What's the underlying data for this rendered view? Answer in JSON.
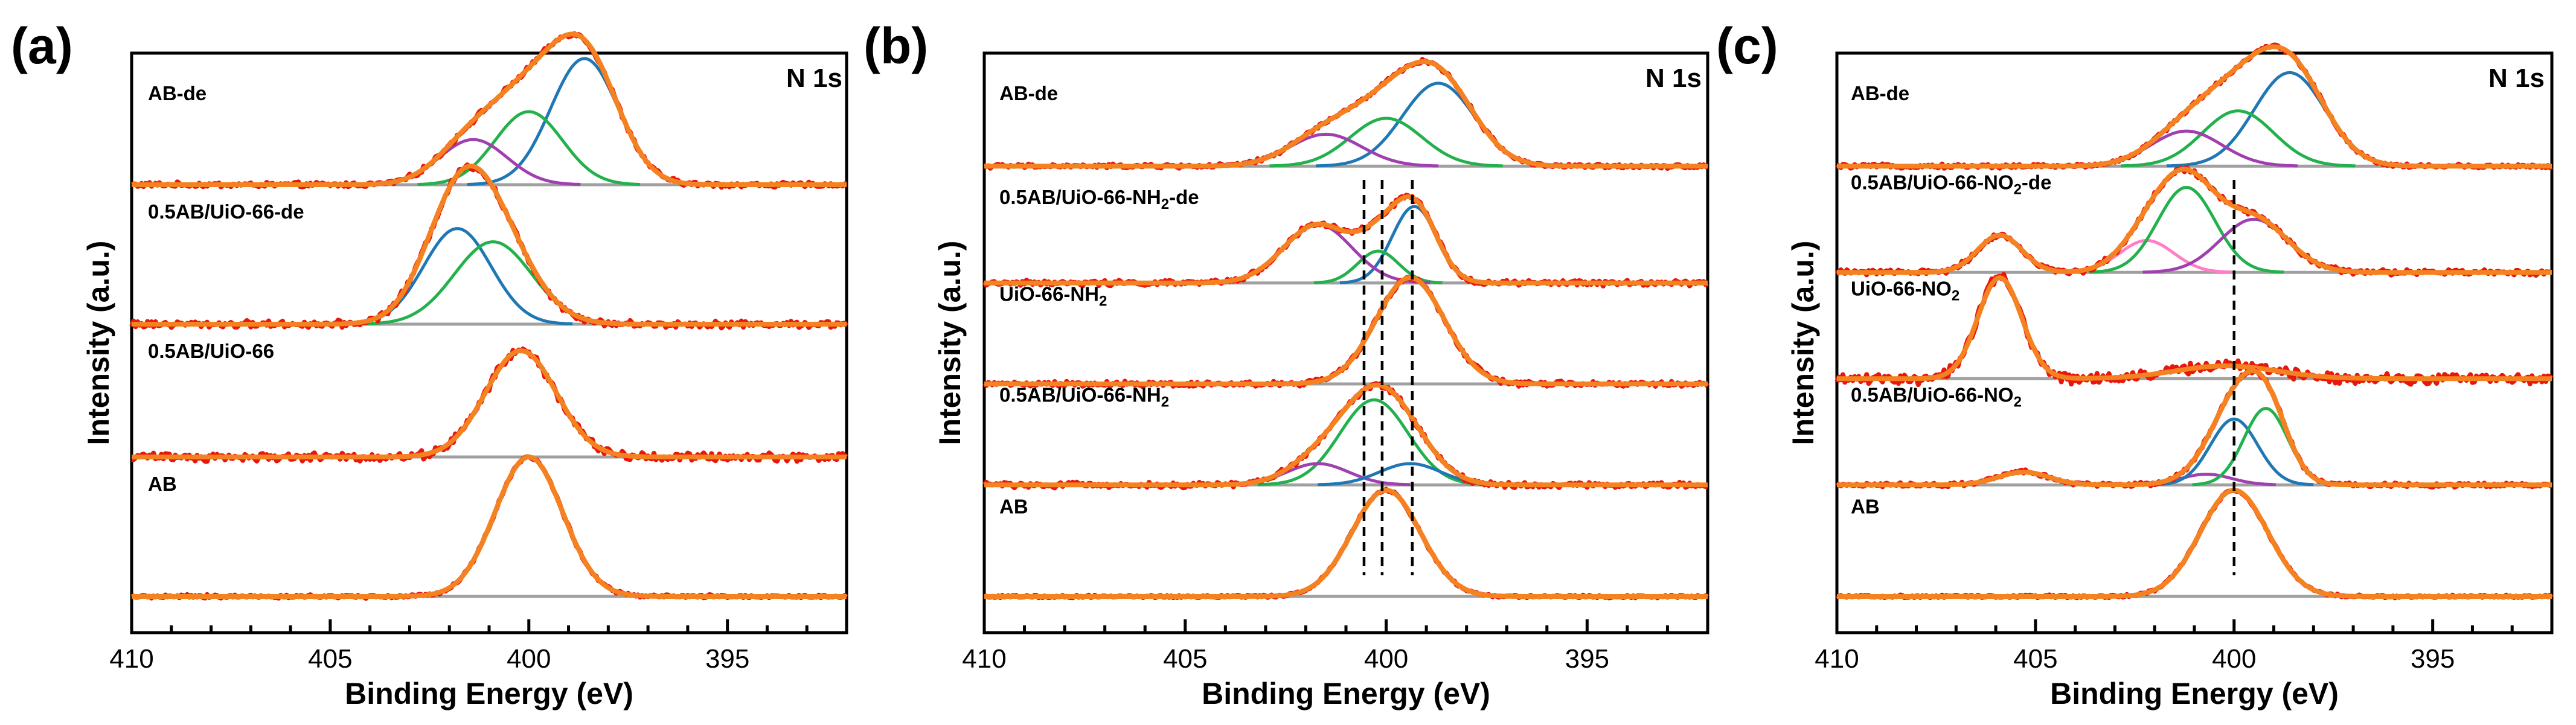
{
  "chart_data": [
    {
      "panel": "(a)",
      "type": "line",
      "title": "N 1s",
      "xlabel": "Binding Energy (eV)",
      "ylabel": "Intensity (a.u.)",
      "xlim": [
        410,
        392
      ],
      "x_reversed": true,
      "xticks": [
        410,
        405,
        400,
        395
      ],
      "yticks": [],
      "series_type": "XPS spectra, stacked (offset) vertically, raw data + envelope fit + component peaks",
      "spectra": [
        {
          "label": "AB-de",
          "label_parts": [
            {
              "text": "AB-de"
            }
          ],
          "offset": 3.1,
          "baseline": 0.0,
          "noise": 0.015,
          "components": [
            {
              "color": "#1f77b4",
              "center": 398.6,
              "height": 0.95,
              "fwhm": 2.0
            },
            {
              "color": "#22b14c",
              "center": 400.0,
              "height": 0.55,
              "fwhm": 2.0
            },
            {
              "color": "#a040b0",
              "center": 401.4,
              "height": 0.34,
              "fwhm": 2.0
            }
          ]
        },
        {
          "label": "0.5AB/UiO-66-de",
          "label_parts": [
            {
              "text": "0.5AB/UiO-66-de"
            }
          ],
          "offset": 2.05,
          "baseline": 0.0,
          "noise": 0.02,
          "components": [
            {
              "color": "#1f77b4",
              "center": 401.8,
              "height": 0.72,
              "fwhm": 2.0
            },
            {
              "color": "#22b14c",
              "center": 400.9,
              "height": 0.62,
              "fwhm": 2.3
            }
          ]
        },
        {
          "label": "0.5AB/UiO-66",
          "label_parts": [
            {
              "text": "0.5AB/UiO-66"
            }
          ],
          "offset": 1.05,
          "baseline": 0.0,
          "noise": 0.025,
          "components": [
            {
              "center": 400.2,
              "height": 0.8,
              "fwhm": 2.1,
              "color": "none"
            }
          ]
        },
        {
          "label": "AB",
          "label_parts": [
            {
              "text": "AB"
            }
          ],
          "offset": 0.0,
          "baseline": 0.0,
          "noise": 0.01,
          "components": [
            {
              "center": 400.0,
              "height": 1.05,
              "fwhm": 2.0,
              "color": "none"
            }
          ]
        }
      ],
      "reference_lines": []
    },
    {
      "panel": "(b)",
      "type": "line",
      "title": "N 1s",
      "xlabel": "Binding Energy (eV)",
      "ylabel": "Intensity (a.u.)",
      "xlim": [
        410,
        392
      ],
      "x_reversed": true,
      "xticks": [
        410,
        405,
        400,
        395
      ],
      "yticks": [],
      "series_type": "XPS spectra, stacked (offset) vertically, raw data + envelope fit + component peaks",
      "spectra": [
        {
          "label": "AB-de",
          "label_parts": [
            {
              "text": "AB-de"
            }
          ],
          "offset": 4.05,
          "baseline": 0.0,
          "noise": 0.015,
          "components": [
            {
              "color": "#1f77b4",
              "center": 398.7,
              "height": 0.78,
              "fwhm": 2.1
            },
            {
              "color": "#22b14c",
              "center": 400.0,
              "height": 0.45,
              "fwhm": 2.1
            },
            {
              "color": "#a040b0",
              "center": 401.5,
              "height": 0.3,
              "fwhm": 2.1
            }
          ]
        },
        {
          "label": "0.5AB/UiO-66-NH2-de",
          "label_parts": [
            {
              "text": "0.5AB/UiO-66-NH"
            },
            {
              "text": "2",
              "sub": true
            },
            {
              "text": "-de"
            }
          ],
          "offset": 2.95,
          "baseline": 0.0,
          "noise": 0.02,
          "components": [
            {
              "color": "#1f77b4",
              "center": 399.3,
              "height": 0.72,
              "fwhm": 1.3
            },
            {
              "color": "#22b14c",
              "center": 400.2,
              "height": 0.3,
              "fwhm": 1.2
            },
            {
              "color": "#a040b0",
              "center": 401.7,
              "height": 0.55,
              "fwhm": 2.0
            }
          ]
        },
        {
          "label": "UiO-66-NH2",
          "label_parts": [
            {
              "text": "UiO-66-NH"
            },
            {
              "text": "2",
              "sub": true
            }
          ],
          "offset": 2.0,
          "baseline": 0.0,
          "noise": 0.02,
          "components": [
            {
              "center": 399.4,
              "height": 1.0,
              "fwhm": 2.0,
              "color": "none"
            }
          ]
        },
        {
          "label": "0.5AB/UiO-66-NH2",
          "label_parts": [
            {
              "text": "0.5AB/UiO-66-NH"
            },
            {
              "text": "2",
              "sub": true
            }
          ],
          "offset": 1.05,
          "baseline": 0.0,
          "noise": 0.02,
          "components": [
            {
              "color": "#22b14c",
              "center": 400.3,
              "height": 0.8,
              "fwhm": 2.0
            },
            {
              "color": "#a040b0",
              "center": 401.7,
              "height": 0.2,
              "fwhm": 1.8
            },
            {
              "color": "#1f77b4",
              "center": 399.4,
              "height": 0.2,
              "fwhm": 1.8
            }
          ]
        },
        {
          "label": "AB",
          "label_parts": [
            {
              "text": "AB"
            }
          ],
          "offset": 0.0,
          "baseline": 0.0,
          "noise": 0.01,
          "components": [
            {
              "center": 400.0,
              "height": 1.0,
              "fwhm": 2.0,
              "color": "none"
            }
          ]
        }
      ],
      "reference_lines": [
        399.35,
        400.1,
        400.55
      ]
    },
    {
      "panel": "(c)",
      "type": "line",
      "title": "N 1s",
      "xlabel": "Binding Energy (eV)",
      "ylabel": "Intensity (a.u.)",
      "xlim": [
        410,
        392
      ],
      "x_reversed": true,
      "xticks": [
        410,
        405,
        400,
        395
      ],
      "yticks": [],
      "series_type": "XPS spectra, stacked (offset) vertically, raw data + envelope fit + component peaks",
      "spectra": [
        {
          "label": "AB-de",
          "label_parts": [
            {
              "text": "AB-de"
            }
          ],
          "offset": 4.05,
          "baseline": 0.0,
          "noise": 0.015,
          "components": [
            {
              "color": "#1f77b4",
              "center": 398.6,
              "height": 0.88,
              "fwhm": 2.1
            },
            {
              "color": "#22b14c",
              "center": 399.9,
              "height": 0.52,
              "fwhm": 2.1
            },
            {
              "color": "#a040b0",
              "center": 401.2,
              "height": 0.33,
              "fwhm": 2.1
            }
          ]
        },
        {
          "label": "0.5AB/UiO-66-NO2-de",
          "label_parts": [
            {
              "text": "0.5AB/UiO-66-NO"
            },
            {
              "text": "2",
              "sub": true
            },
            {
              "text": "-de"
            }
          ],
          "offset": 3.05,
          "baseline": 0.0,
          "noise": 0.02,
          "components": [
            {
              "color": "#7a7a7a",
              "center": 405.9,
              "height": 0.35,
              "fwhm": 1.3
            },
            {
              "color": "#ff7ec8",
              "center": 402.2,
              "height": 0.3,
              "fwhm": 1.6
            },
            {
              "color": "#22b14c",
              "center": 401.2,
              "height": 0.8,
              "fwhm": 1.7
            },
            {
              "color": "#a040b0",
              "center": 399.5,
              "height": 0.5,
              "fwhm": 2.0
            }
          ]
        },
        {
          "label": "UiO-66-NO2",
          "label_parts": [
            {
              "text": "UiO-66-NO"
            },
            {
              "text": "2",
              "sub": true
            }
          ],
          "offset": 2.05,
          "baseline": 0.0,
          "noise": 0.04,
          "components": [
            {
              "center": 405.9,
              "height": 0.95,
              "fwhm": 1.3,
              "color": "none"
            },
            {
              "center": 400.2,
              "height": 0.12,
              "fwhm": 3.0,
              "color": "none"
            }
          ]
        },
        {
          "label": "0.5AB/UiO-66-NO2",
          "label_parts": [
            {
              "text": "0.5AB/UiO-66-NO"
            },
            {
              "text": "2",
              "sub": true
            }
          ],
          "offset": 1.05,
          "baseline": 0.0,
          "noise": 0.015,
          "components": [
            {
              "color": "#7a7a7a",
              "center": 405.3,
              "height": 0.12,
              "fwhm": 1.5
            },
            {
              "color": "#a040b0",
              "center": 400.7,
              "height": 0.1,
              "fwhm": 1.5
            },
            {
              "color": "#1f77b4",
              "center": 400.0,
              "height": 0.62,
              "fwhm": 1.4
            },
            {
              "color": "#22b14c",
              "center": 399.2,
              "height": 0.72,
              "fwhm": 1.3
            }
          ]
        },
        {
          "label": "AB",
          "label_parts": [
            {
              "text": "AB"
            }
          ],
          "offset": 0.0,
          "baseline": 0.0,
          "noise": 0.01,
          "components": [
            {
              "center": 400.0,
              "height": 1.0,
              "fwhm": 2.0,
              "color": "none"
            }
          ]
        }
      ],
      "reference_lines": [
        400.0
      ]
    }
  ],
  "colors": {
    "raw": "#e8170b",
    "envelope": "#f58220",
    "baseline": "#a0a0a0",
    "axis": "#000000"
  }
}
